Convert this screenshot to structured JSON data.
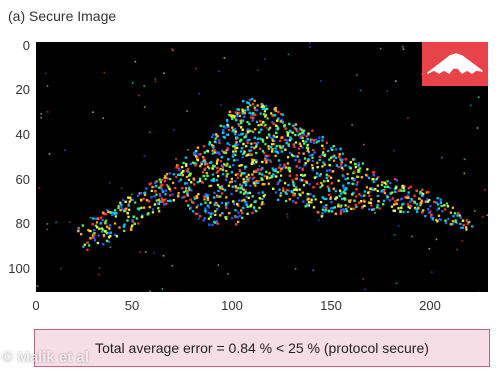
{
  "panel_title": "(a) Secure Image",
  "error_summary": "Total average error = 0.84 % < 25 % (protocol secure)",
  "watermark": "© Malik et al",
  "colors": {
    "plot_background": "#000000",
    "inset_background": "#e8434a",
    "inset_shape": "#ffffff",
    "error_box_fill": "#f7dde6",
    "error_box_border": "#b56a88"
  },
  "icons": {
    "reference_shape": "stealth-bomber-silhouette-icon"
  },
  "chart_data": {
    "type": "heatmap",
    "title": "(a) Secure Image",
    "xlabel": "",
    "ylabel": "",
    "xlim": [
      0,
      225
    ],
    "ylim": [
      0,
      110
    ],
    "y_inverted": true,
    "x_ticks": [
      0,
      50,
      100,
      150,
      200
    ],
    "y_ticks": [
      0,
      20,
      40,
      60,
      80,
      100
    ],
    "grid": false,
    "legend": "none",
    "colormap": [
      "#2b5cff",
      "#00c8ff",
      "#3cff6a",
      "#e6ff3a",
      "#ffb020",
      "#ff3a2a"
    ],
    "object_outline": {
      "x": [
        18,
        40,
        65,
        88,
        100,
        110,
        140,
        170,
        200,
        217,
        215,
        190,
        160,
        145,
        128,
        115,
        100,
        85,
        70,
        55,
        40,
        25,
        18
      ],
      "y": [
        83,
        70,
        57,
        40,
        25,
        24,
        40,
        57,
        67,
        80,
        85,
        75,
        73,
        78,
        70,
        70,
        80,
        80,
        68,
        78,
        86,
        93,
        83
      ]
    }
  }
}
